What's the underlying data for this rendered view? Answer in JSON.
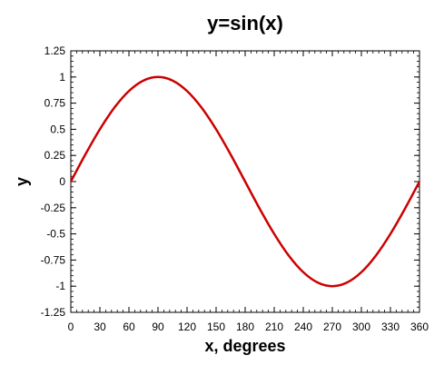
{
  "chart_data": {
    "type": "line",
    "title": "y=sin(x)",
    "xlabel": "x, degrees",
    "ylabel": "y",
    "xlim": [
      0,
      360
    ],
    "ylim": [
      -1.25,
      1.25
    ],
    "grid": false,
    "x_ticks": [
      "0",
      "30",
      "60",
      "90",
      "120",
      "150",
      "180",
      "210",
      "240",
      "270",
      "300",
      "330",
      "360"
    ],
    "y_ticks": [
      "1.25",
      "1",
      "0.75",
      "0.5",
      "0.25",
      "0",
      "-0.25",
      "-0.5",
      "-0.75",
      "-1",
      "-1.25"
    ],
    "series": [
      {
        "color": "#cc0000",
        "x": [
          0,
          15,
          30,
          45,
          60,
          75,
          90,
          105,
          120,
          135,
          150,
          165,
          180,
          195,
          210,
          225,
          240,
          255,
          270,
          285,
          300,
          315,
          330,
          345,
          360
        ],
        "y": [
          0,
          0.259,
          0.5,
          0.707,
          0.866,
          0.966,
          1,
          0.966,
          0.866,
          0.707,
          0.5,
          0.259,
          0,
          -0.259,
          -0.5,
          -0.707,
          -0.866,
          -0.966,
          -1,
          -0.966,
          -0.866,
          -0.707,
          -0.5,
          -0.259,
          0
        ]
      }
    ]
  }
}
